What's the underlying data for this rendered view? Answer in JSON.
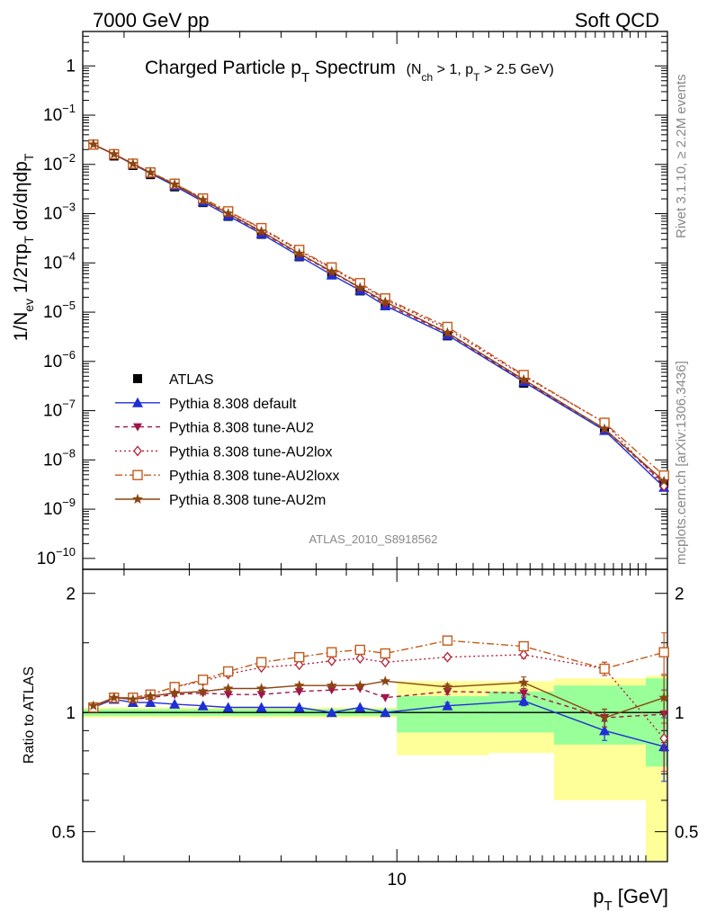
{
  "header": {
    "left": "7000 GeV pp",
    "right": "Soft QCD"
  },
  "side_text": {
    "top": "Rivet 3.1.10, ≥ 2.2M events",
    "bottom": "mcplots.cern.ch [arXiv:1306.3436]"
  },
  "watermark": "ATLAS_2010_S8918562",
  "chart_data": [
    {
      "type": "line",
      "title": {
        "main": "Charged Particle p",
        "main_sub": "T",
        "main_rest": " Spectrum",
        "cut": "(N",
        "cut_sub1": "ch",
        "cut_mid": " > 1, p",
        "cut_sub2": "T",
        "cut_rest": " > 2.5 GeV)"
      },
      "ylabel": {
        "a": "1/N",
        "a_sub": "ev",
        "b": " 1/2πp",
        "b_sub": "T",
        "c": " dσ/dηdp",
        "c_sub": "T"
      },
      "xscale": "log",
      "yscale": "log",
      "xlim": [
        2.5,
        33
      ],
      "ylim": [
        6e-11,
        5
      ],
      "yticks": [
        {
          "v": 1,
          "m": "1",
          "e": ""
        },
        {
          "v": 0.1,
          "m": "10",
          "e": "−1"
        },
        {
          "v": 0.01,
          "m": "10",
          "e": "−2"
        },
        {
          "v": 0.001,
          "m": "10",
          "e": "−3"
        },
        {
          "v": 0.0001,
          "m": "10",
          "e": "−4"
        },
        {
          "v": 1e-05,
          "m": "10",
          "e": "−5"
        },
        {
          "v": 1e-06,
          "m": "10",
          "e": "−6"
        },
        {
          "v": 1e-07,
          "m": "10",
          "e": "−7"
        },
        {
          "v": 1e-08,
          "m": "10",
          "e": "−8"
        },
        {
          "v": 1e-09,
          "m": "10",
          "e": "−9"
        },
        {
          "v": 1e-10,
          "m": "10",
          "e": "−10"
        }
      ],
      "x": [
        2.62,
        2.87,
        3.12,
        3.37,
        3.75,
        4.25,
        4.75,
        5.5,
        6.5,
        7.5,
        8.5,
        9.5,
        12.5,
        17.5,
        25.0,
        32.5
      ],
      "data": {
        "name": "ATLAS",
        "values": [
          0.0245,
          0.0148,
          0.0095,
          0.0062,
          0.0035,
          0.00168,
          0.00088,
          0.00038,
          0.000133,
          5.7e-05,
          2.7e-05,
          1.35e-05,
          3.3e-06,
          3.6e-07,
          4.4e-08,
          3.4e-09
        ]
      },
      "series": [
        {
          "name": "Pythia 8.308 default",
          "color": "#1f2fd6",
          "dash": "",
          "marker": "tri-up",
          "ratio": [
            1.03,
            1.08,
            1.06,
            1.06,
            1.05,
            1.04,
            1.03,
            1.03,
            1.03,
            1.0,
            1.03,
            1.0,
            1.04,
            1.07,
            0.9,
            0.82
          ],
          "ratio_err": [
            0.01,
            0.01,
            0.01,
            0.01,
            0.01,
            0.01,
            0.01,
            0.01,
            0.01,
            0.01,
            0.01,
            0.01,
            0.02,
            0.03,
            0.05,
            0.15
          ]
        },
        {
          "name": "Pythia 8.308 tune-AU2",
          "color": "#a0154a",
          "dash": "5,4",
          "marker": "tri-down",
          "ratio": [
            1.03,
            1.09,
            1.08,
            1.09,
            1.11,
            1.12,
            1.11,
            1.11,
            1.13,
            1.14,
            1.15,
            1.09,
            1.13,
            1.12,
            0.97,
            0.99
          ],
          "ratio_err": [
            0.01,
            0.01,
            0.01,
            0.01,
            0.01,
            0.01,
            0.01,
            0.01,
            0.01,
            0.01,
            0.01,
            0.01,
            0.02,
            0.03,
            0.05,
            0.15
          ]
        },
        {
          "name": "Pythia 8.308 tune-AU2lox",
          "color": "#b0223a",
          "dash": "2,3",
          "marker": "diamond",
          "ratio": [
            1.03,
            1.09,
            1.09,
            1.11,
            1.16,
            1.2,
            1.25,
            1.3,
            1.32,
            1.35,
            1.37,
            1.34,
            1.38,
            1.4,
            1.29,
            0.86
          ],
          "ratio_err": [
            0.01,
            0.01,
            0.01,
            0.01,
            0.01,
            0.01,
            0.01,
            0.01,
            0.01,
            0.01,
            0.01,
            0.01,
            0.02,
            0.03,
            0.05,
            0.15
          ]
        },
        {
          "name": "Pythia 8.308 tune-AU2loxx",
          "color": "#c45a1a",
          "dash": "8,3,2,3",
          "marker": "square-open",
          "ratio": [
            1.03,
            1.09,
            1.09,
            1.11,
            1.16,
            1.21,
            1.27,
            1.34,
            1.38,
            1.42,
            1.44,
            1.41,
            1.52,
            1.47,
            1.29,
            1.42
          ],
          "ratio_err": [
            0.01,
            0.01,
            0.01,
            0.01,
            0.01,
            0.01,
            0.01,
            0.01,
            0.01,
            0.01,
            0.01,
            0.01,
            0.02,
            0.03,
            0.05,
            0.17
          ]
        },
        {
          "name": "Pythia 8.308 tune-AU2m",
          "color": "#8b4513",
          "dash": "",
          "marker": "star",
          "ratio": [
            1.04,
            1.09,
            1.08,
            1.1,
            1.12,
            1.13,
            1.15,
            1.15,
            1.17,
            1.17,
            1.17,
            1.2,
            1.16,
            1.19,
            0.97,
            1.09
          ],
          "ratio_err": [
            0.01,
            0.01,
            0.01,
            0.01,
            0.01,
            0.01,
            0.01,
            0.01,
            0.01,
            0.01,
            0.01,
            0.01,
            0.02,
            0.04,
            0.05,
            0.15
          ]
        }
      ],
      "legend_position": "lower-left"
    },
    {
      "type": "line",
      "ylabel": "Ratio to ATLAS",
      "xlabel": {
        "a": "p",
        "a_sub": "T",
        "b": "  [GeV]"
      },
      "xscale": "log",
      "yscale": "log",
      "xlim": [
        2.5,
        33
      ],
      "ylim": [
        0.42,
        2.3
      ],
      "yticks": [
        {
          "v": 0.5,
          "t": "0.5"
        },
        {
          "v": 1,
          "t": "1"
        },
        {
          "v": 2,
          "t": "2"
        }
      ],
      "xticks": [
        {
          "v": 10,
          "t": "10"
        }
      ],
      "uncertainty_bands": {
        "edges": [
          2.5,
          2.75,
          3.0,
          3.25,
          3.5,
          4.0,
          4.5,
          5.0,
          6.0,
          7.0,
          8.0,
          9.0,
          10.0,
          15.0,
          20.0,
          30.0,
          35.0
        ],
        "stat_lo": [
          0.98,
          0.98,
          0.98,
          0.98,
          0.98,
          0.98,
          0.98,
          0.98,
          0.98,
          0.98,
          0.98,
          0.98,
          0.89,
          0.89,
          0.83,
          0.73
        ],
        "stat_hi": [
          1.02,
          1.02,
          1.02,
          1.02,
          1.02,
          1.02,
          1.02,
          1.02,
          1.02,
          1.02,
          1.02,
          1.02,
          1.1,
          1.13,
          1.17,
          1.22
        ],
        "tot_lo": [
          0.97,
          0.97,
          0.97,
          0.97,
          0.97,
          0.97,
          0.97,
          0.97,
          0.97,
          0.97,
          0.97,
          0.97,
          0.78,
          0.79,
          0.6,
          0.4
        ],
        "tot_hi": [
          1.03,
          1.03,
          1.03,
          1.03,
          1.03,
          1.03,
          1.03,
          1.03,
          1.03,
          1.03,
          1.03,
          1.03,
          1.2,
          1.2,
          1.22,
          1.24
        ]
      }
    }
  ]
}
